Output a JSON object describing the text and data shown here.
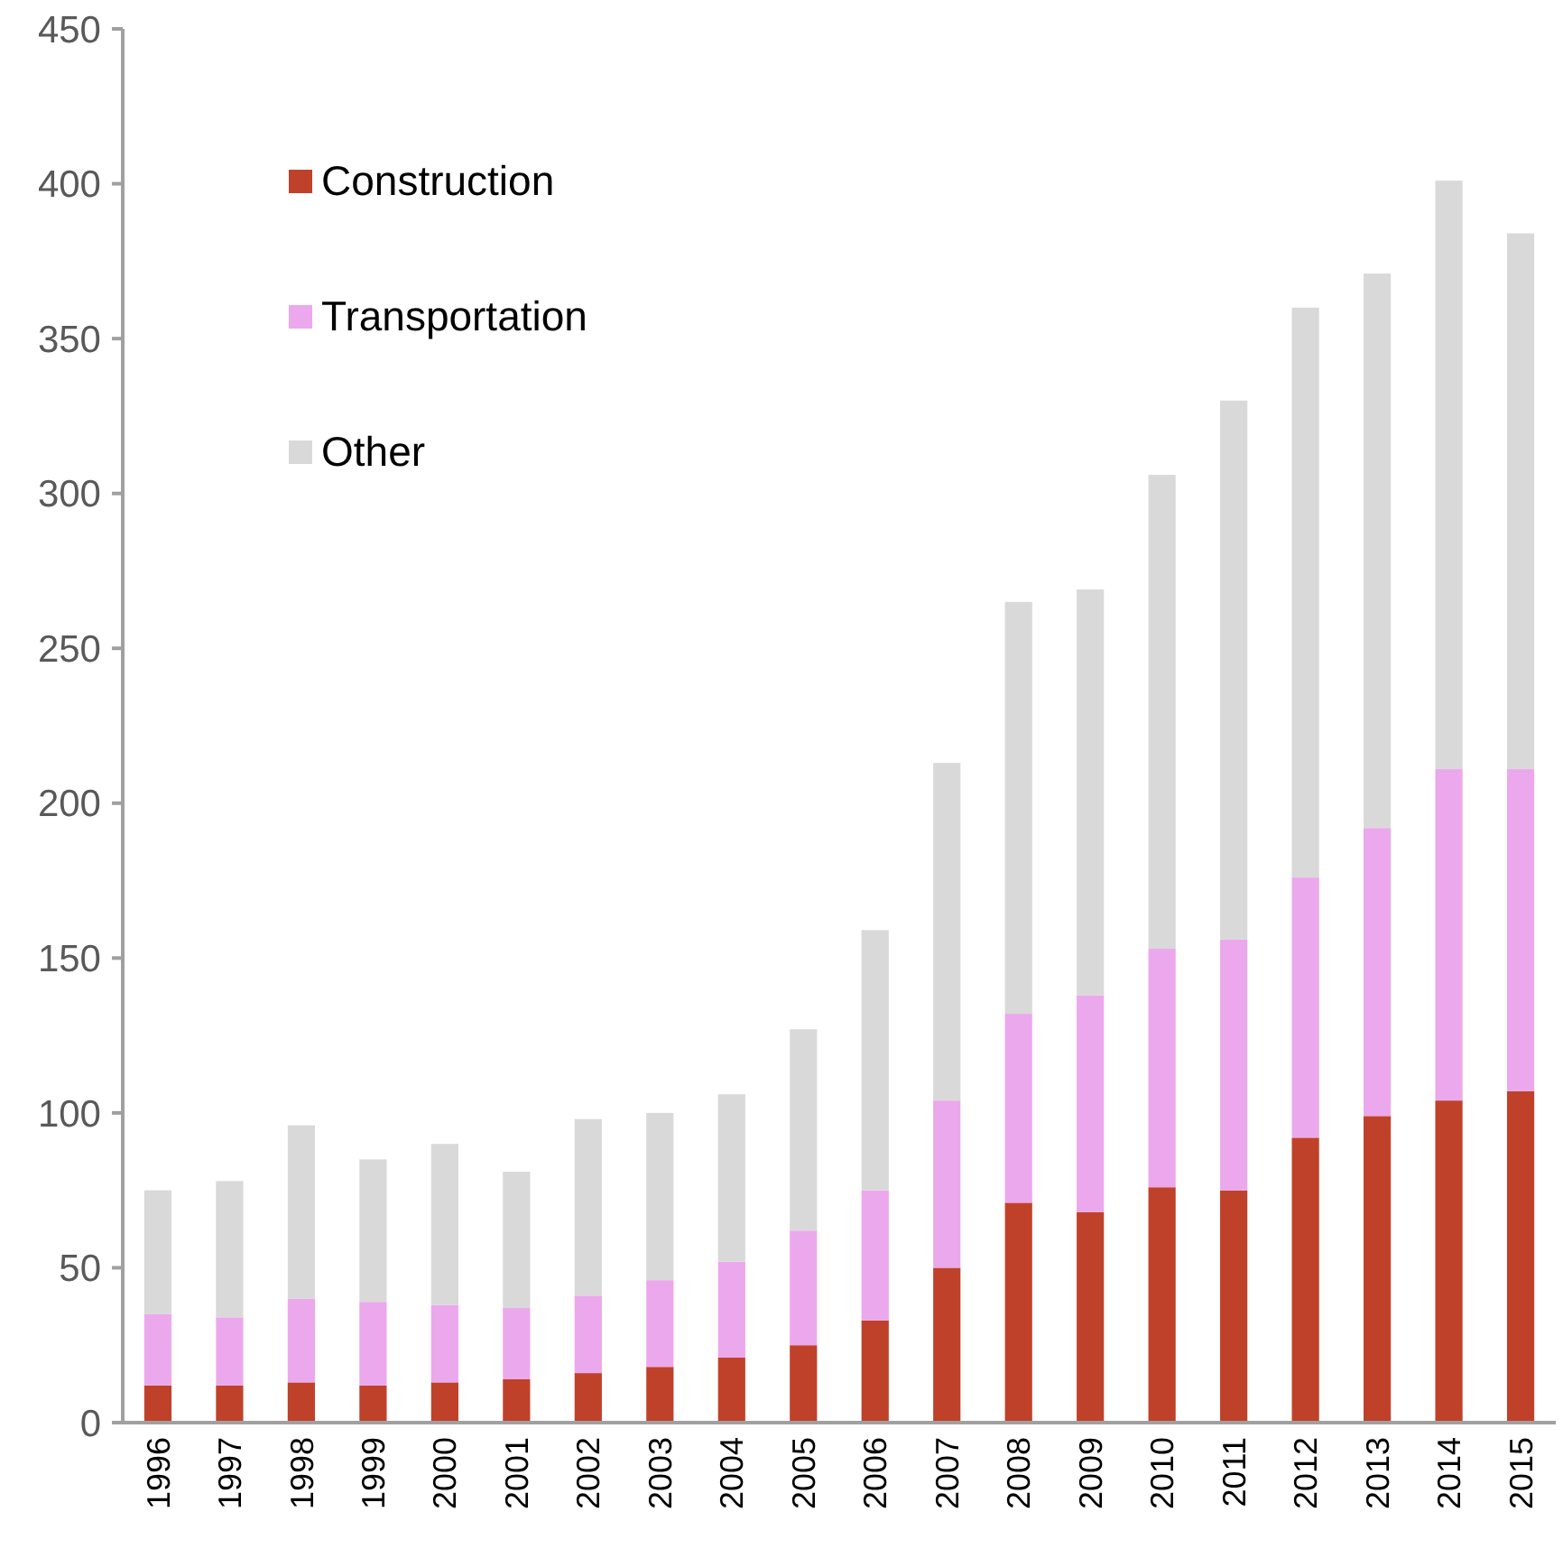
{
  "chart_data": {
    "type": "bar",
    "stacked": true,
    "categories": [
      "1996",
      "1997",
      "1998",
      "1999",
      "2000",
      "2001",
      "2002",
      "2003",
      "2004",
      "2005",
      "2006",
      "2007",
      "2008",
      "2009",
      "2010",
      "2011",
      "2012",
      "2013",
      "2014",
      "2015"
    ],
    "series": [
      {
        "name": "Construction",
        "color": "#c0412a",
        "values": [
          12,
          12,
          13,
          12,
          13,
          14,
          16,
          18,
          21,
          25,
          33,
          50,
          71,
          68,
          76,
          75,
          92,
          99,
          104,
          107
        ]
      },
      {
        "name": "Transportation",
        "color": "#eca8ec",
        "values": [
          23,
          22,
          27,
          27,
          25,
          23,
          25,
          28,
          31,
          37,
          42,
          54,
          61,
          70,
          77,
          81,
          84,
          93,
          107,
          104
        ]
      },
      {
        "name": "Other",
        "color": "#d9d9d9",
        "values": [
          40,
          44,
          56,
          46,
          52,
          44,
          57,
          54,
          54,
          65,
          84,
          109,
          133,
          131,
          153,
          174,
          184,
          179,
          190,
          173
        ]
      }
    ],
    "ylim": [
      0,
      450
    ],
    "yticks": [
      0,
      50,
      100,
      150,
      200,
      250,
      300,
      350,
      400,
      450
    ],
    "grid": false,
    "legend": "top left"
  }
}
